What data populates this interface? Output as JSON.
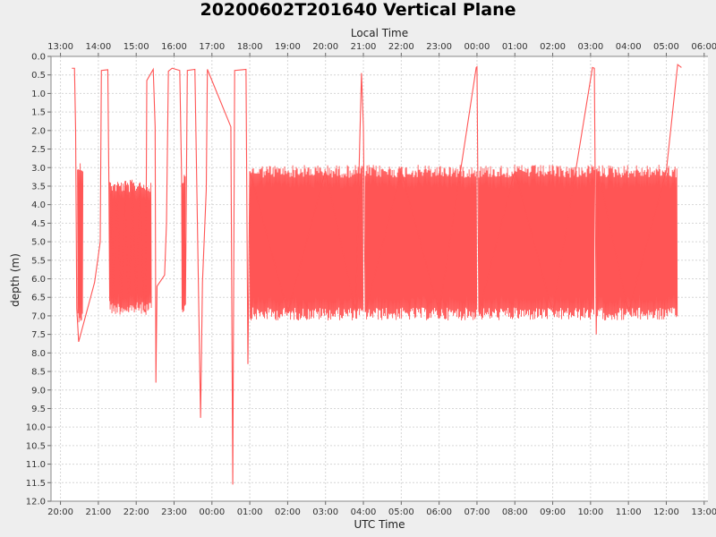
{
  "chart_data": {
    "type": "line",
    "title": "20200602T201640 Vertical Plane",
    "top_axis_label": "Local Time",
    "xlabel": "UTC Time",
    "ylabel": "depth (m)",
    "y_inverted": true,
    "ylim": [
      0,
      12.0
    ],
    "y_ticks": [
      "0.0",
      "0.5",
      "1.0",
      "1.5",
      "2.0",
      "2.5",
      "3.0",
      "3.5",
      "4.0",
      "4.5",
      "5.0",
      "5.5",
      "6.0",
      "6.5",
      "7.0",
      "7.5",
      "8.0",
      "8.5",
      "9.0",
      "9.5",
      "10.0",
      "10.5",
      "11.0",
      "11.5",
      "12.0"
    ],
    "x_unit": "hours since 00:00 UTC on 2020-06-02",
    "xlim": [
      19.75,
      37.1
    ],
    "x_ticks_utc": [
      "20:00",
      "21:00",
      "22:00",
      "23:00",
      "00:00",
      "01:00",
      "02:00",
      "03:00",
      "04:00",
      "05:00",
      "06:00",
      "07:00",
      "08:00",
      "09:00",
      "10:00",
      "11:00",
      "12:00",
      "13:00"
    ],
    "x_ticks_local": [
      "13:00",
      "14:00",
      "15:00",
      "16:00",
      "17:00",
      "18:00",
      "19:00",
      "20:00",
      "21:00",
      "22:00",
      "23:00",
      "00:00",
      "01:00",
      "02:00",
      "03:00",
      "04:00",
      "05:00",
      "06:00"
    ],
    "grid": true,
    "series": [
      {
        "color": "#ff5555",
        "profile_segments": [
          {
            "x": [
              20.45,
              20.6
            ],
            "y_top": 3.0,
            "y_bottom": 7.0
          },
          {
            "x": [
              21.3,
              22.4
            ],
            "y_top": 3.5,
            "y_bottom": 6.8
          },
          {
            "x": [
              23.2,
              23.3
            ],
            "y_top": 3.3,
            "y_bottom": 6.9
          },
          {
            "x": [
              25.0,
              28.0
            ],
            "y_top": 3.1,
            "y_bottom": 6.95
          },
          {
            "x": [
              28.05,
              31.0
            ],
            "y_top": 3.1,
            "y_bottom": 6.95
          },
          {
            "x": [
              31.05,
              34.1
            ],
            "y_top": 3.1,
            "y_bottom": 6.95
          },
          {
            "x": [
              34.15,
              36.3
            ],
            "y_top": 3.1,
            "y_bottom": 6.95
          }
        ],
        "points": [
          [
            20.3,
            0.32
          ],
          [
            20.37,
            0.32
          ],
          [
            20.4,
            2.0
          ],
          [
            20.43,
            6.8
          ],
          [
            20.48,
            7.7
          ],
          [
            20.9,
            6.1
          ],
          [
            21.05,
            5.0
          ],
          [
            21.08,
            0.38
          ],
          [
            21.25,
            0.36
          ],
          [
            21.28,
            3.6
          ],
          [
            21.3,
            6.6
          ],
          [
            21.35,
            3.5
          ],
          [
            21.4,
            6.8
          ],
          [
            21.5,
            3.5
          ],
          [
            21.6,
            6.8
          ],
          [
            21.7,
            3.5
          ],
          [
            21.8,
            6.9
          ],
          [
            21.9,
            3.6
          ],
          [
            22.0,
            6.7
          ],
          [
            22.1,
            3.4
          ],
          [
            22.2,
            6.8
          ],
          [
            22.25,
            6.9
          ],
          [
            22.28,
            0.65
          ],
          [
            22.45,
            0.35
          ],
          [
            22.5,
            1.9
          ],
          [
            22.52,
            8.8
          ],
          [
            22.55,
            6.2
          ],
          [
            22.75,
            5.9
          ],
          [
            22.8,
            4.5
          ],
          [
            22.85,
            0.4
          ],
          [
            22.95,
            0.32
          ],
          [
            23.15,
            0.38
          ],
          [
            23.2,
            3.3
          ],
          [
            23.23,
            6.9
          ],
          [
            23.27,
            3.2
          ],
          [
            23.3,
            6.7
          ],
          [
            23.35,
            0.38
          ],
          [
            23.55,
            0.35
          ],
          [
            23.7,
            9.75
          ],
          [
            23.75,
            6.1
          ],
          [
            23.85,
            3.6
          ],
          [
            23.88,
            0.35
          ],
          [
            24.5,
            1.9
          ],
          [
            24.55,
            11.55
          ],
          [
            24.6,
            0.38
          ],
          [
            24.8,
            0.36
          ],
          [
            24.9,
            0.35
          ],
          [
            24.95,
            8.3
          ],
          [
            25.0,
            3.1
          ],
          [
            26.0,
            6.9
          ],
          [
            27.0,
            3.1
          ],
          [
            27.8,
            6.9
          ],
          [
            27.9,
            2.45
          ],
          [
            27.95,
            0.45
          ],
          [
            28.0,
            1.9
          ],
          [
            28.05,
            6.9
          ],
          [
            29.0,
            3.1
          ],
          [
            30.0,
            6.9
          ],
          [
            30.98,
            0.3
          ],
          [
            31.0,
            0.28
          ],
          [
            31.05,
            6.9
          ],
          [
            32.0,
            3.1
          ],
          [
            33.0,
            6.9
          ],
          [
            34.05,
            0.3
          ],
          [
            34.1,
            0.32
          ],
          [
            34.15,
            7.5
          ],
          [
            34.2,
            3.1
          ],
          [
            35.0,
            6.9
          ],
          [
            36.0,
            3.1
          ],
          [
            36.3,
            0.22
          ],
          [
            36.4,
            0.3
          ]
        ]
      }
    ]
  }
}
